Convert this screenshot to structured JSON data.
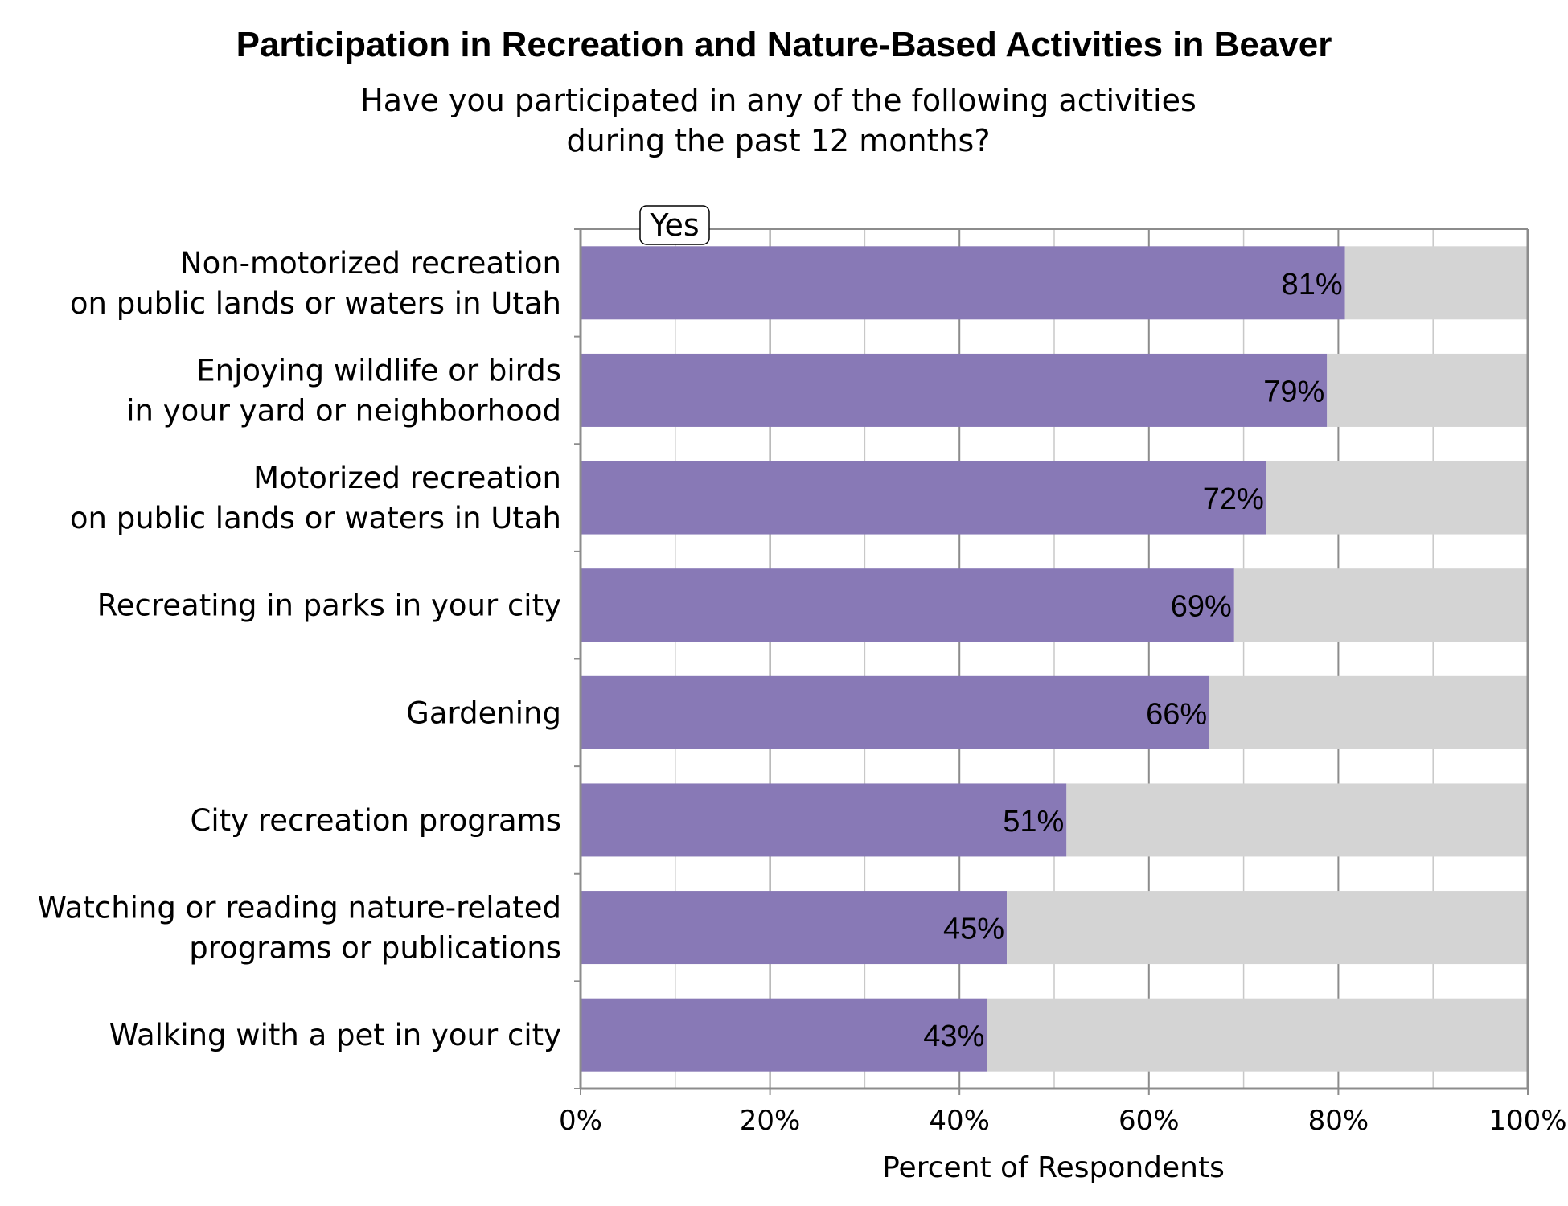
{
  "chart_data": {
    "type": "bar",
    "orientation": "horizontal",
    "stacked": true,
    "title": "Participation in Recreation and Nature-Based Activities in Beaver",
    "subtitle": [
      "Have you participated in any of the following activities",
      "during the past 12 months?"
    ],
    "xlabel": "Percent of Respondents",
    "ylabel": "",
    "xlim": [
      0,
      100
    ],
    "xticks": [
      "0%",
      "20%",
      "40%",
      "60%",
      "80%",
      "100%"
    ],
    "grid": true,
    "legend": {
      "label": "Yes",
      "placement": "top-left"
    },
    "categories": [
      [
        "Non-motorized recreation",
        "on public lands or waters in Utah"
      ],
      [
        "Enjoying wildlife or birds",
        "in your yard or neighborhood"
      ],
      [
        "Motorized recreation",
        "on public lands or waters in Utah"
      ],
      [
        "Recreating in parks in your city"
      ],
      [
        "Gardening"
      ],
      [
        "City recreation programs"
      ],
      [
        "Watching or reading nature-related",
        "programs or publications"
      ],
      [
        "Walking with a pet in your city"
      ]
    ],
    "series": [
      {
        "name": "Yes",
        "color": "#8879B6",
        "values": [
          80.7,
          78.8,
          72.4,
          69.0,
          66.4,
          51.3,
          45.0,
          42.9
        ],
        "labels": [
          "81%",
          "79%",
          "72%",
          "69%",
          "66%",
          "51%",
          "45%",
          "43%"
        ]
      },
      {
        "color": "#D4D4D4",
        "values": [
          19.3,
          21.2,
          27.6,
          31.0,
          33.6,
          48.7,
          55.0,
          57.1
        ]
      }
    ]
  }
}
